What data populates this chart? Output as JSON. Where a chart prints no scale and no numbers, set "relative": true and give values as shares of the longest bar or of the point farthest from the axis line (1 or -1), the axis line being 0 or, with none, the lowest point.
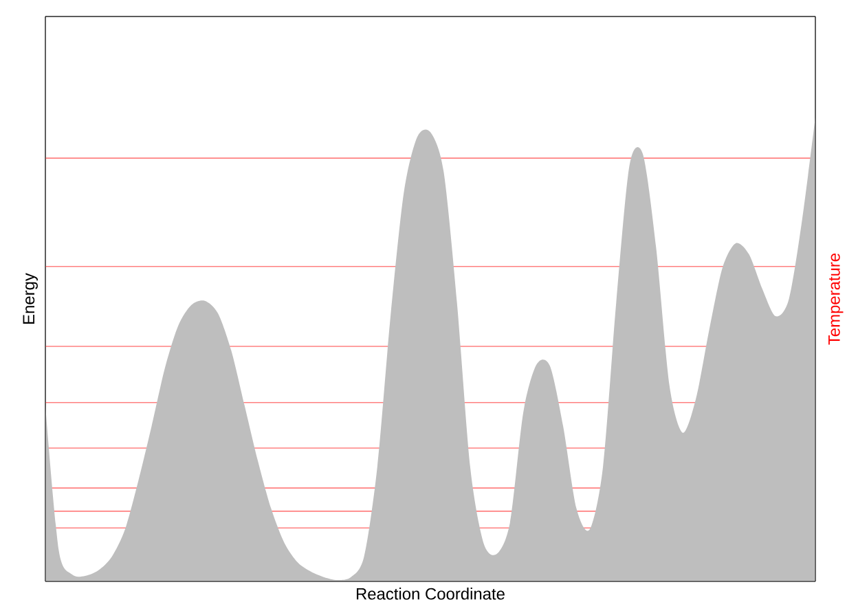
{
  "chart_data": {
    "type": "area",
    "relative": true,
    "xlabel": "Reaction Coordinate",
    "ylabel": "Energy",
    "y2label": "Temperature",
    "categories": [
      null,
      null,
      null,
      null,
      null,
      null,
      null,
      null,
      null,
      null,
      null,
      null,
      null,
      null,
      null,
      null,
      null,
      null,
      null,
      null,
      null,
      null,
      null,
      null,
      null,
      null,
      null,
      null,
      null,
      null,
      null,
      null,
      null,
      null,
      null,
      null,
      null,
      null,
      null,
      null,
      null,
      null,
      null,
      null,
      null,
      null,
      null,
      null,
      null,
      null,
      null,
      null,
      null,
      null,
      null,
      null,
      null,
      null,
      null
    ],
    "series": [
      {
        "color": "#bebebe",
        "values": [
          0.379,
          0.068,
          0.015,
          0.012,
          0.024,
          0.053,
          0.112,
          0.216,
          0.334,
          0.459,
          0.55,
          0.595,
          0.604,
          0.577,
          0.497,
          0.379,
          0.26,
          0.157,
          0.083,
          0.041,
          0.021,
          0.009,
          0.003,
          0.009,
          0.053,
          0.246,
          0.571,
          0.837,
          0.956,
          0.967,
          0.882,
          0.601,
          0.246,
          0.083,
          0.059,
          0.127,
          0.364,
          0.467,
          0.464,
          0.334,
          0.157,
          0.112,
          0.246,
          0.601,
          0.896,
          0.92,
          0.719,
          0.423,
          0.32,
          0.393,
          0.541,
          0.675,
          0.728,
          0.704,
          0.63,
          0.571,
          0.607,
          0.778,
          1.0
        ]
      }
    ],
    "ref_lines": [
      {
        "axis": "y",
        "value": 0.911,
        "color": "#ff8080"
      },
      {
        "axis": "y",
        "value": 0.678,
        "color": "#ff8080"
      },
      {
        "axis": "y",
        "value": 0.506,
        "color": "#ff8080"
      },
      {
        "axis": "y",
        "value": 0.385,
        "color": "#ff8080"
      },
      {
        "axis": "y",
        "value": 0.287,
        "color": "#ff8080"
      },
      {
        "axis": "y",
        "value": 0.201,
        "color": "#ff8080"
      },
      {
        "axis": "y",
        "value": 0.151,
        "color": "#ff8080"
      },
      {
        "axis": "y",
        "value": 0.115,
        "color": "#ff8080"
      }
    ],
    "line_style": "solid"
  }
}
